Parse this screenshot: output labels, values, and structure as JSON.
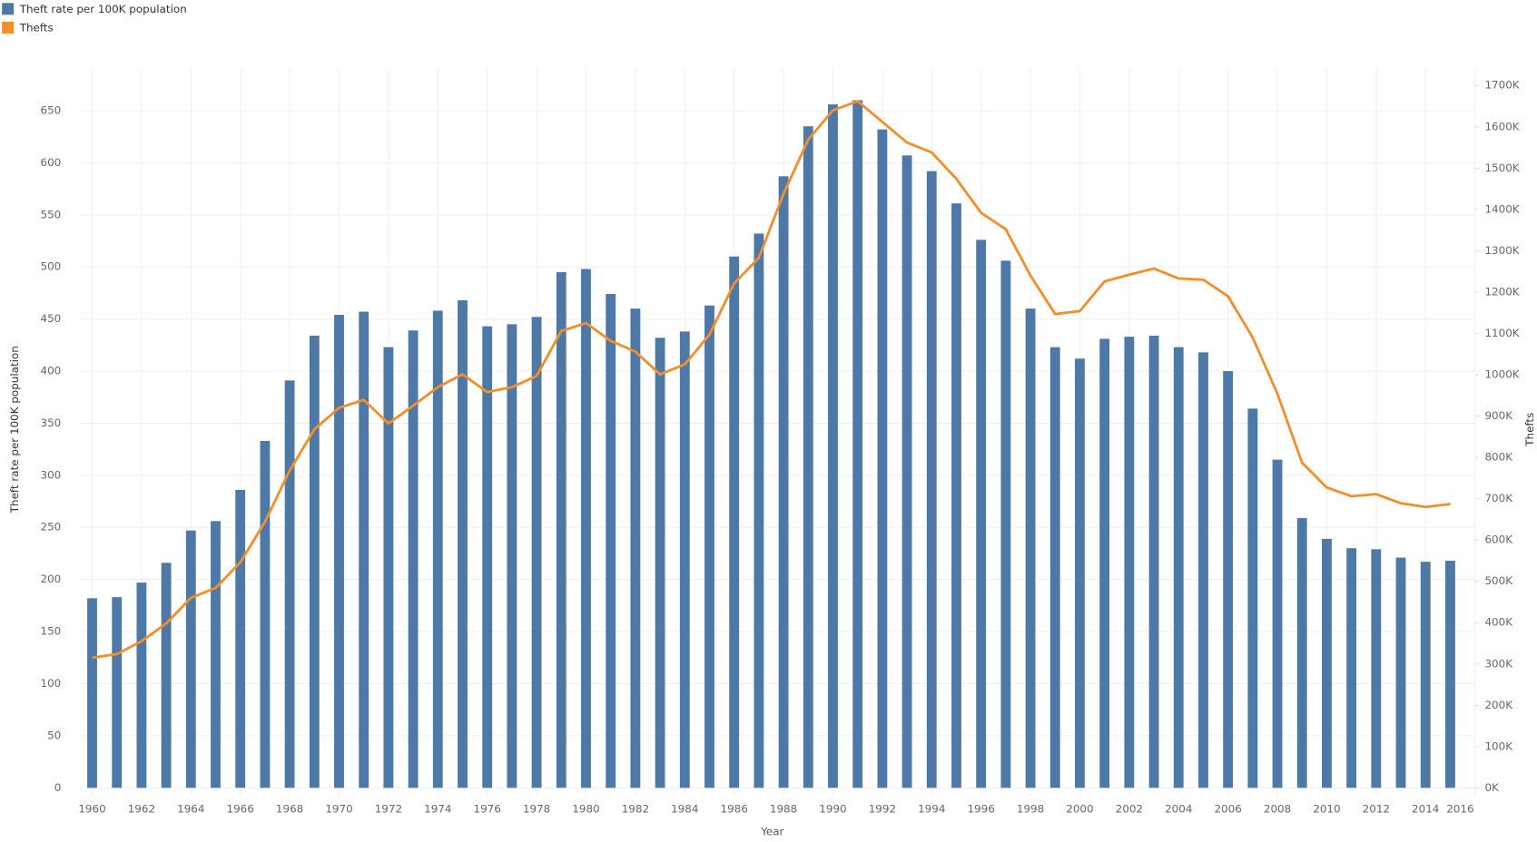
{
  "chart_data": {
    "type": "bar",
    "x_label": "Year",
    "y_label": "Theft rate per 100K population",
    "y2_label": "Thefts",
    "legend": "top-left",
    "grid": true,
    "x": [
      1960,
      1961,
      1962,
      1963,
      1964,
      1965,
      1966,
      1967,
      1968,
      1969,
      1970,
      1971,
      1972,
      1973,
      1974,
      1975,
      1976,
      1977,
      1978,
      1979,
      1980,
      1981,
      1982,
      1983,
      1984,
      1985,
      1986,
      1987,
      1988,
      1989,
      1990,
      1991,
      1992,
      1993,
      1994,
      1995,
      1996,
      1997,
      1998,
      1999,
      2000,
      2001,
      2002,
      2003,
      2004,
      2005,
      2006,
      2007,
      2008,
      2009,
      2010,
      2011,
      2012,
      2013,
      2014,
      2015
    ],
    "xlim": [
      1959.5,
      2016
    ],
    "xticks": [
      1960,
      1962,
      1964,
      1966,
      1968,
      1970,
      1972,
      1974,
      1976,
      1978,
      1980,
      1982,
      1984,
      1986,
      1988,
      1990,
      1992,
      1994,
      1996,
      1998,
      2000,
      2002,
      2004,
      2006,
      2008,
      2010,
      2012,
      2014,
      2016
    ],
    "ylim": [
      -8,
      690
    ],
    "yticks": [
      0,
      50,
      100,
      150,
      200,
      250,
      300,
      350,
      400,
      450,
      500,
      550,
      600,
      650
    ],
    "y2lim": [
      -20000,
      1740000
    ],
    "y2ticks": [
      {
        "value": 0,
        "label": "0K"
      },
      {
        "value": 100000,
        "label": "100K"
      },
      {
        "value": 200000,
        "label": "200K"
      },
      {
        "value": 300000,
        "label": "300K"
      },
      {
        "value": 400000,
        "label": "400K"
      },
      {
        "value": 500000,
        "label": "500K"
      },
      {
        "value": 600000,
        "label": "600K"
      },
      {
        "value": 700000,
        "label": "700K"
      },
      {
        "value": 800000,
        "label": "800K"
      },
      {
        "value": 900000,
        "label": "900K"
      },
      {
        "value": 1000000,
        "label": "1000K"
      },
      {
        "value": 1100000,
        "label": "1100K"
      },
      {
        "value": 1200000,
        "label": "1200K"
      },
      {
        "value": 1300000,
        "label": "1300K"
      },
      {
        "value": 1400000,
        "label": "1400K"
      },
      {
        "value": 1500000,
        "label": "1500K"
      },
      {
        "value": 1600000,
        "label": "1600K"
      },
      {
        "value": 1700000,
        "label": "1700K"
      }
    ],
    "series": [
      {
        "name": "Theft rate per 100K population",
        "type": "bar",
        "color": "#4e79a7",
        "values": [
          182,
          183,
          197,
          216,
          247,
          256,
          286,
          333,
          391,
          434,
          454,
          457,
          423,
          439,
          458,
          468,
          443,
          445,
          452,
          495,
          498,
          474,
          460,
          432,
          438,
          463,
          510,
          532,
          587,
          635,
          656,
          660,
          632,
          607,
          592,
          561,
          526,
          506,
          460,
          423,
          412,
          431,
          433,
          434,
          423,
          418,
          400,
          364,
          315,
          259,
          239,
          230,
          229,
          221,
          217,
          218
        ]
      },
      {
        "name": "Thefts",
        "type": "line",
        "axis": "y2",
        "color": "#f28e2b",
        "values": [
          315000,
          324000,
          355000,
          398000,
          460000,
          484000,
          546000,
          644000,
          768000,
          868000,
          920000,
          939000,
          882000,
          925000,
          970000,
          1001000,
          958000,
          970000,
          997000,
          1106000,
          1125000,
          1082000,
          1056000,
          1001000,
          1025000,
          1097000,
          1221000,
          1283000,
          1438000,
          1569000,
          1640000,
          1662000,
          1612000,
          1562000,
          1538000,
          1474000,
          1392000,
          1352000,
          1240000,
          1147000,
          1154000,
          1226000,
          1242000,
          1257000,
          1233000,
          1230000,
          1190000,
          1090000,
          954000,
          787000,
          727000,
          706000,
          711000,
          689000,
          680000,
          687000
        ]
      }
    ]
  }
}
